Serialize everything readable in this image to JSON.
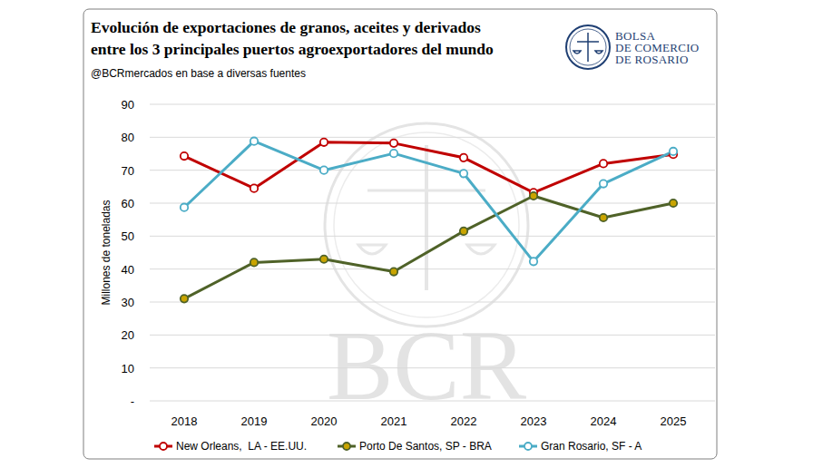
{
  "chart_data": {
    "type": "line",
    "title": [
      "Evolución de exportaciones de granos, aceites y derivados",
      "entre los 3 principales puertos agroexportadores del mundo"
    ],
    "subtitle": "@BCRmercados en base a diversas fuentes",
    "logo": [
      "BOLSA",
      "DE COMERCIO",
      "DE ROSARIO"
    ],
    "watermark": "BCR",
    "y_label": "Millones de toneladas",
    "categories": [
      "2018",
      "2019",
      "2020",
      "2021",
      "2022",
      "2023",
      "2024",
      "2025"
    ],
    "series": [
      {
        "name": "New Orleans,  LA - EE.UU.",
        "color": "#c00000",
        "marker": "circle",
        "values": [
          74.3,
          64.5,
          78.5,
          78.2,
          73.8,
          63.2,
          72.0,
          74.8
        ]
      },
      {
        "name": "Porto De Santos, SP - BRA",
        "color": "#4f6228",
        "marker": "circle",
        "values": [
          31.0,
          42.0,
          43.0,
          39.2,
          51.5,
          62.2,
          55.6,
          60.0
        ]
      },
      {
        "name": "Gran Rosario, SF - A",
        "color": "#4bacc6",
        "marker": "circle",
        "values": [
          58.7,
          78.8,
          70.0,
          75.1,
          69.0,
          42.3,
          65.9,
          75.7
        ]
      }
    ],
    "ylim": [
      0,
      90
    ],
    "yticks": [
      {
        "value": 0,
        "label": "-"
      },
      10,
      20,
      30,
      40,
      50,
      60,
      70,
      80,
      90
    ],
    "grid": true,
    "legend": "bottom"
  }
}
